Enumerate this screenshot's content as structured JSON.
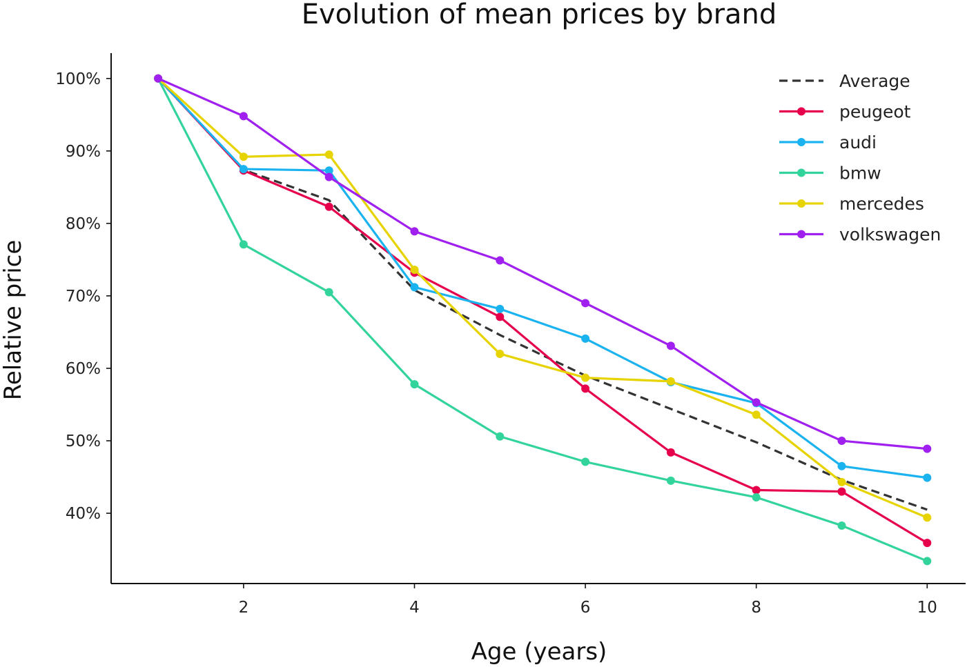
{
  "chart_data": {
    "type": "line",
    "title": "Evolution of mean prices by brand",
    "xlabel": "Age (years)",
    "ylabel": "Relative price",
    "x": [
      1,
      2,
      3,
      4,
      5,
      6,
      7,
      8,
      9,
      10
    ],
    "xlim": [
      0.45,
      10.45
    ],
    "ylim": [
      30.3,
      103.5
    ],
    "xticks": [
      2,
      4,
      6,
      8,
      10
    ],
    "xtick_labels": [
      "2",
      "4",
      "6",
      "8",
      "10"
    ],
    "yticks": [
      40,
      50,
      60,
      70,
      80,
      90,
      100
    ],
    "ytick_labels": [
      "40%",
      "50%",
      "60%",
      "70%",
      "80%",
      "90%",
      "100%"
    ],
    "grid": false,
    "legend_position": "top-right",
    "series": [
      {
        "name": "Average",
        "color": "#333333",
        "dashed": true,
        "markers": false,
        "values": [
          100,
          87.4,
          83.2,
          70.8,
          64.6,
          59.0,
          54.4,
          49.8,
          44.6,
          40.5
        ]
      },
      {
        "name": "peugeot",
        "color": "#e6004c",
        "dashed": false,
        "markers": true,
        "values": [
          100,
          87.3,
          82.3,
          73.2,
          67.1,
          57.2,
          48.4,
          43.2,
          43.0,
          35.9
        ]
      },
      {
        "name": "audi",
        "color": "#1ab3f0",
        "dashed": false,
        "markers": true,
        "values": [
          100,
          87.5,
          87.3,
          71.2,
          68.2,
          64.1,
          58.1,
          55.2,
          46.5,
          44.9
        ]
      },
      {
        "name": "bmw",
        "color": "#33d49b",
        "dashed": false,
        "markers": true,
        "values": [
          100,
          77.1,
          70.5,
          57.8,
          50.6,
          47.1,
          44.5,
          42.2,
          38.3,
          33.4
        ]
      },
      {
        "name": "mercedes",
        "color": "#e6d300",
        "dashed": false,
        "markers": true,
        "values": [
          100,
          89.2,
          89.5,
          73.6,
          62.0,
          58.7,
          58.2,
          53.6,
          44.3,
          39.4
        ]
      },
      {
        "name": "volkswagen",
        "color": "#a020f0",
        "dashed": false,
        "markers": true,
        "values": [
          100,
          94.8,
          86.4,
          78.9,
          74.9,
          69.0,
          63.1,
          55.3,
          50.0,
          48.9
        ]
      }
    ]
  }
}
